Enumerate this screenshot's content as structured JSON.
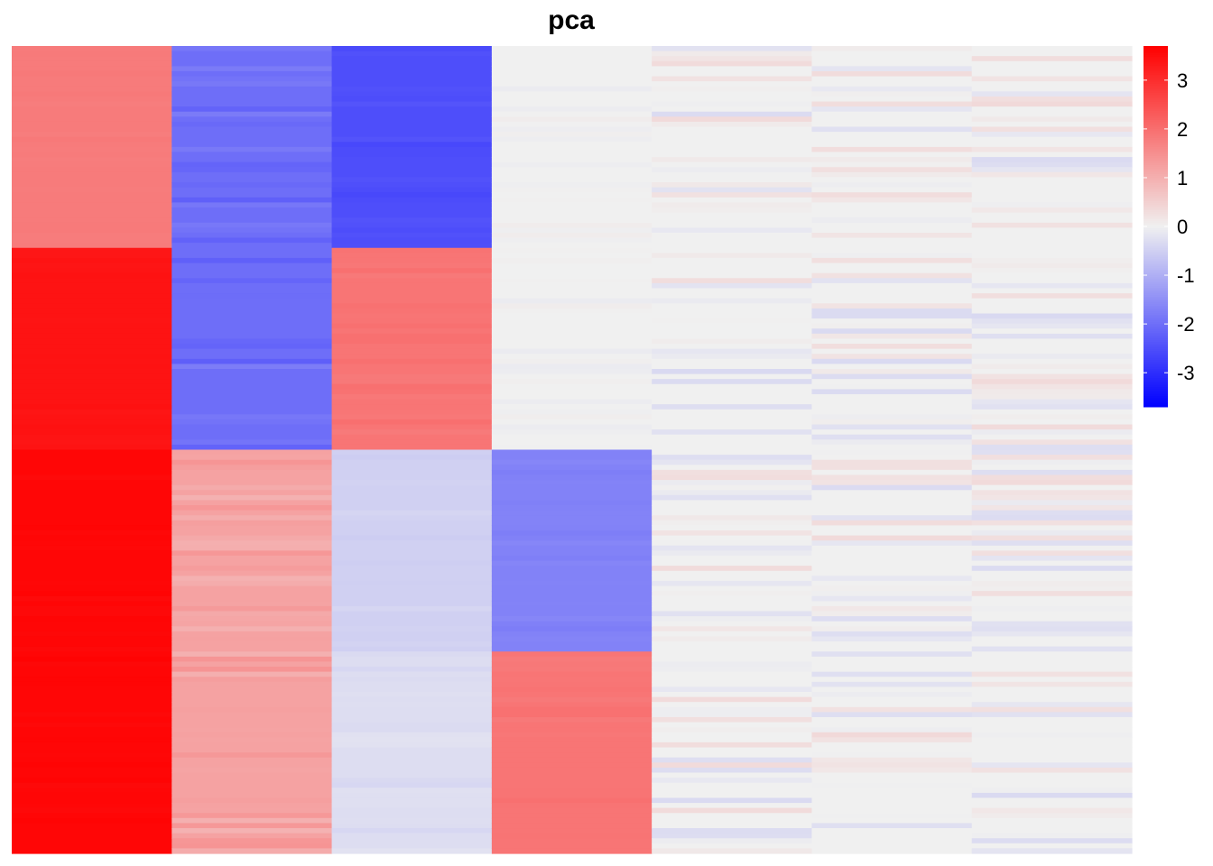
{
  "chart_data": {
    "type": "heatmap",
    "title": "pca",
    "n_columns": 7,
    "n_row_blocks": 4,
    "column_block_values": [
      [
        1.8,
        3.4,
        3.6,
        3.6
      ],
      [
        -2.0,
        -2.0,
        1.2,
        1.2
      ],
      [
        -2.5,
        1.9,
        -0.5,
        -0.3
      ],
      [
        0.0,
        0.0,
        -1.7,
        1.9
      ],
      [
        0.0,
        0.0,
        0.0,
        0.0
      ],
      [
        0.0,
        0.0,
        0.0,
        0.0
      ],
      [
        0.0,
        0.0,
        0.0,
        0.0
      ]
    ],
    "noise_amplitude": [
      0.03,
      0.15,
      0.06,
      0.05,
      0.22,
      0.22,
      0.22
    ],
    "color_scale": {
      "min": -3.7,
      "max": 3.7,
      "low": "#0000FF",
      "mid": "#F0F0F0",
      "high": "#FF0000"
    },
    "legend": {
      "position": "right",
      "ticks": [
        3,
        2,
        1,
        0,
        -1,
        -2,
        -3
      ],
      "tick_labels": [
        "3",
        "2",
        "1",
        "0",
        "-1",
        "-2",
        "-3"
      ]
    }
  }
}
